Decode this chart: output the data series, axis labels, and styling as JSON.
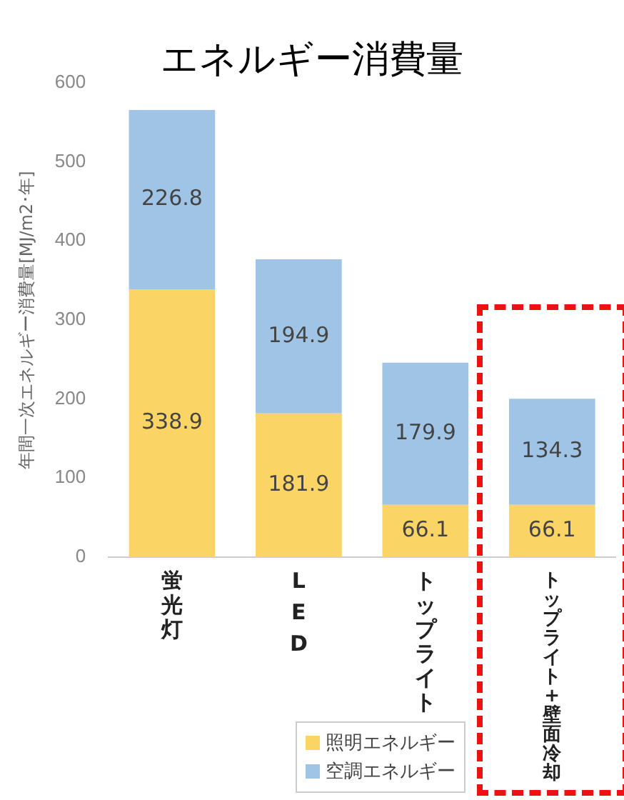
{
  "chart_data": {
    "type": "bar",
    "stacked": true,
    "title": "エネルギー消費量",
    "ylabel": "年間一次エネルギー消費量[MJ/m2･年]",
    "categories": [
      "蛍光灯",
      "LED",
      "トップライト",
      "トップライト+壁面冷却"
    ],
    "series": [
      {
        "name": "照明エネルギー",
        "color": "#fbd466",
        "values": [
          338.9,
          181.9,
          66.1,
          66.1
        ]
      },
      {
        "name": "空調エネルギー",
        "color": "#9fc4e6",
        "values": [
          226.8,
          194.9,
          179.9,
          134.3
        ]
      }
    ],
    "ylim": [
      0,
      600
    ],
    "yticks": [
      0,
      100,
      200,
      300,
      400,
      500,
      600
    ],
    "data_labels": true,
    "legend": "bottom right"
  }
}
